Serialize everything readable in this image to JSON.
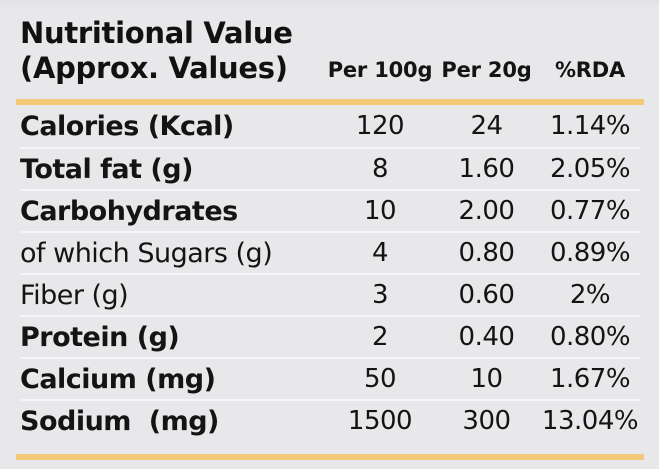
{
  "table": {
    "title_line1": "Nutritional Value",
    "title_line2": "(Approx. Values)",
    "columns": [
      "Per 100g",
      "Per 20g",
      "%RDA"
    ],
    "rows": [
      {
        "label": "Calories (Kcal)",
        "per_100g": "120",
        "per_20g": "24",
        "rda": "1.14%",
        "bold": true
      },
      {
        "label": "Total fat (g)",
        "per_100g": "8",
        "per_20g": "1.60",
        "rda": "2.05%",
        "bold": true
      },
      {
        "label": "Carbohydrates",
        "per_100g": "10",
        "per_20g": "2.00",
        "rda": "0.77%",
        "bold": true
      },
      {
        "label": "of which Sugars (g)",
        "per_100g": "4",
        "per_20g": "0.80",
        "rda": "0.89%",
        "bold": false
      },
      {
        "label": "Fiber (g)",
        "per_100g": "3",
        "per_20g": "0.60",
        "rda": "2%",
        "bold": false
      },
      {
        "label": "Protein (g)",
        "per_100g": "2",
        "per_20g": "0.40",
        "rda": "0.80%",
        "bold": true
      },
      {
        "label": "Calcium (mg)",
        "per_100g": "50",
        "per_20g": "10",
        "rda": "1.67%",
        "bold": true
      },
      {
        "label": "Sodium  (mg)",
        "per_100g": "1500",
        "per_20g": "300",
        "rda": "13.04%",
        "bold": true
      }
    ],
    "colors": {
      "accent_gold": "#f3c877",
      "background": "#e8e8ea",
      "text": "#141414",
      "row_separator": "#f5f5f7"
    }
  }
}
